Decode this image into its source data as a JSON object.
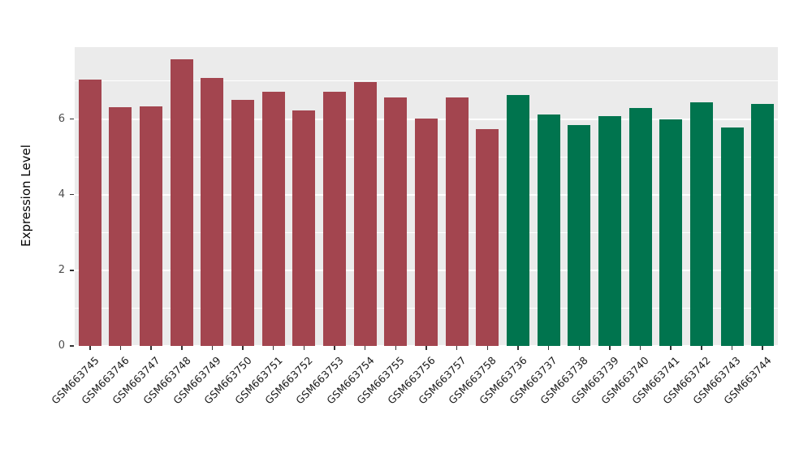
{
  "chart_data": {
    "type": "bar",
    "title": "",
    "xlabel": "",
    "ylabel": "Expression Level",
    "ylim": [
      0,
      7.9
    ],
    "yticks": [
      0,
      2,
      4,
      6
    ],
    "minor_yticks": [
      1,
      3,
      5,
      7
    ],
    "grid": "on",
    "legend_position": "none",
    "panel_bg": "#EBEBEB",
    "grid_color": "#FFFFFF",
    "categories": [
      "GSM663745",
      "GSM663746",
      "GSM663747",
      "GSM663748",
      "GSM663749",
      "GSM663750",
      "GSM663751",
      "GSM663752",
      "GSM663753",
      "GSM663754",
      "GSM663755",
      "GSM663756",
      "GSM663757",
      "GSM663758",
      "GSM663736",
      "GSM663737",
      "GSM663738",
      "GSM663739",
      "GSM663740",
      "GSM663741",
      "GSM663742",
      "GSM663743",
      "GSM663744"
    ],
    "values": [
      7.05,
      6.32,
      6.34,
      7.58,
      7.08,
      6.51,
      6.73,
      6.23,
      6.73,
      6.97,
      6.56,
      6.02,
      6.56,
      5.74,
      6.64,
      6.12,
      5.84,
      6.08,
      6.28,
      6.0,
      6.45,
      5.78,
      6.39
    ],
    "groups": [
      {
        "name": "group-1",
        "color": "#A3454F",
        "from": 0,
        "to": 13
      },
      {
        "name": "group-2",
        "color": "#00744E",
        "from": 14,
        "to": 22
      }
    ]
  }
}
